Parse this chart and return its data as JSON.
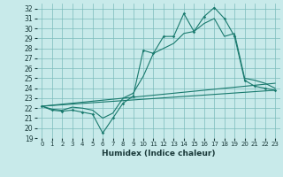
{
  "title": "",
  "xlabel": "Humidex (Indice chaleur)",
  "xlim": [
    -0.5,
    23.5
  ],
  "ylim": [
    19,
    32.5
  ],
  "xticks": [
    0,
    1,
    2,
    3,
    4,
    5,
    6,
    7,
    8,
    9,
    10,
    11,
    12,
    13,
    14,
    15,
    16,
    17,
    18,
    19,
    20,
    21,
    22,
    23
  ],
  "yticks": [
    19,
    20,
    21,
    22,
    23,
    24,
    25,
    26,
    27,
    28,
    29,
    30,
    31,
    32
  ],
  "bg_color": "#c8eaea",
  "grid_color": "#7bbcbc",
  "line_color": "#1a7a6e",
  "line1_x": [
    0,
    1,
    2,
    3,
    4,
    5,
    6,
    7,
    8,
    9,
    10,
    11,
    12,
    13,
    14,
    15,
    16,
    17,
    18,
    19,
    20,
    21,
    22,
    23
  ],
  "line1_y": [
    22.2,
    21.8,
    21.7,
    21.8,
    21.6,
    21.4,
    19.5,
    21.0,
    22.5,
    23.2,
    27.8,
    27.5,
    29.2,
    29.2,
    31.5,
    29.7,
    31.2,
    32.1,
    31.0,
    29.2,
    24.8,
    24.2,
    24.0,
    23.8
  ],
  "line2_x": [
    0,
    1,
    2,
    3,
    4,
    5,
    6,
    7,
    8,
    9,
    10,
    11,
    12,
    13,
    14,
    15,
    16,
    17,
    18,
    19,
    20,
    21,
    22,
    23
  ],
  "line2_y": [
    22.2,
    21.9,
    21.8,
    22.1,
    22.0,
    21.8,
    21.0,
    21.5,
    23.0,
    23.5,
    25.2,
    27.5,
    28.0,
    28.5,
    29.5,
    29.7,
    30.5,
    31.0,
    29.2,
    29.5,
    25.0,
    24.8,
    24.5,
    24.0
  ],
  "line3_x": [
    0,
    23
  ],
  "line3_y": [
    22.2,
    23.8
  ],
  "line4_x": [
    0,
    23
  ],
  "line4_y": [
    22.2,
    24.5
  ]
}
